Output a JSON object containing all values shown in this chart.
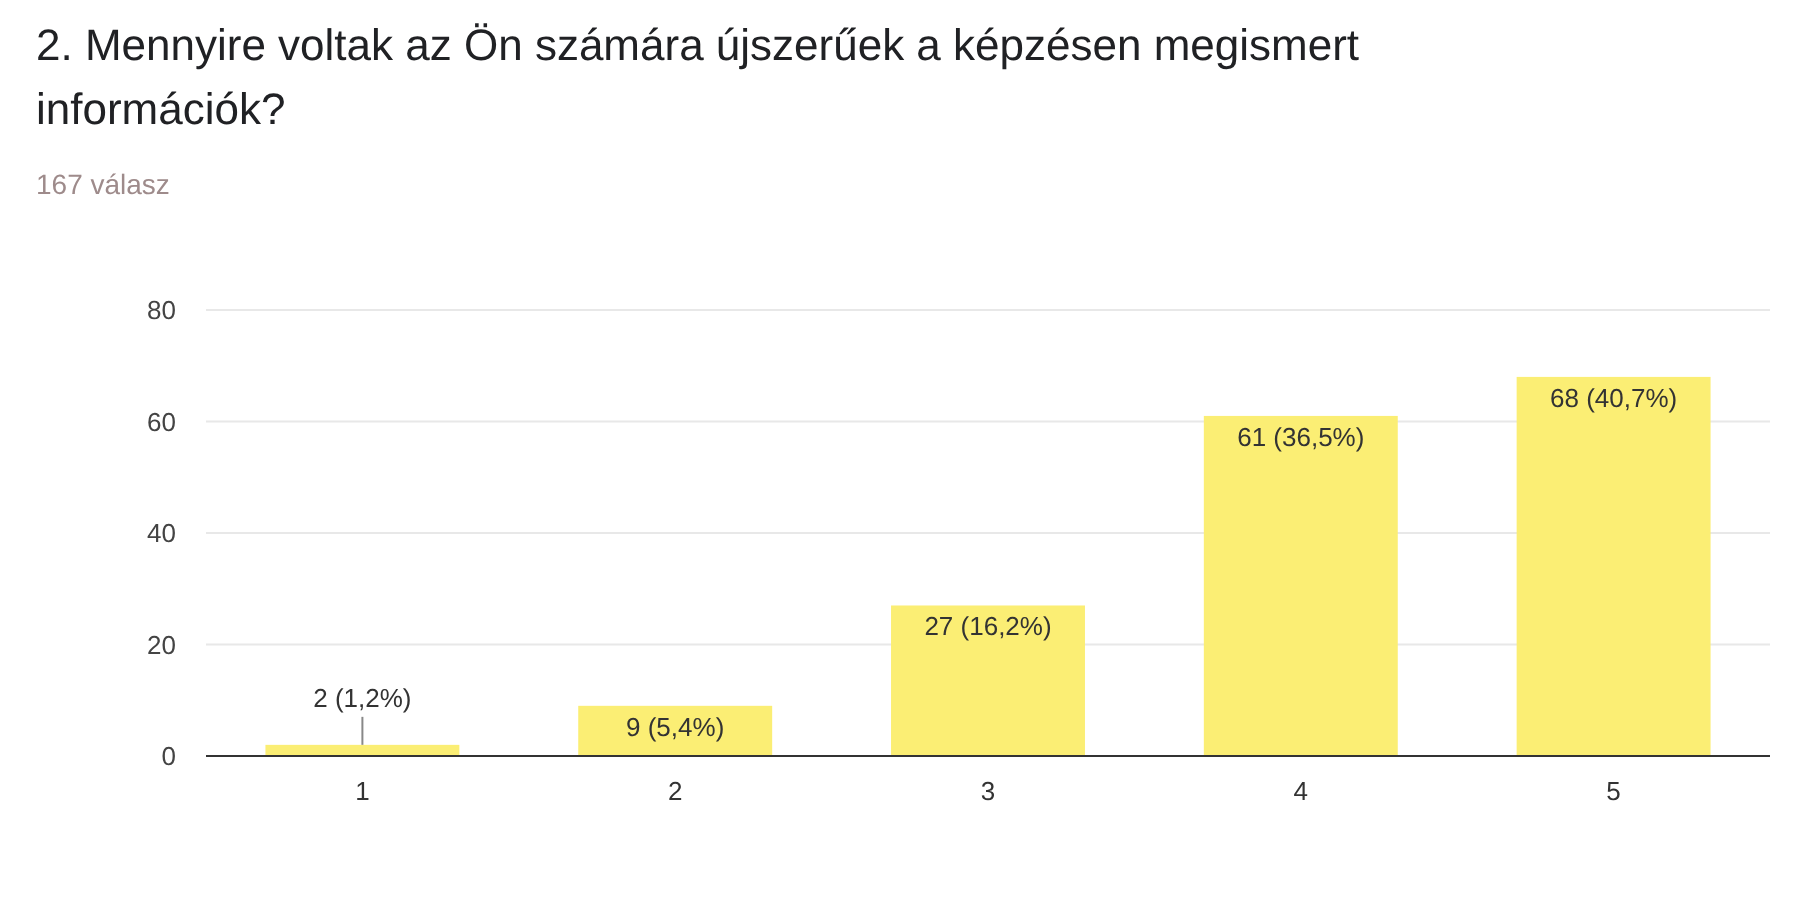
{
  "chart_data": {
    "type": "bar",
    "title": "2. Mennyire voltak az Ön számára újszerűek a képzésen megismert információk?",
    "subtitle": "167 válasz",
    "categories": [
      "1",
      "2",
      "3",
      "4",
      "5"
    ],
    "values": [
      2,
      9,
      27,
      61,
      68
    ],
    "value_labels": [
      "2 (1,2%)",
      "9 (5,4%)",
      "27 (16,2%)",
      "61 (36,5%)",
      "68 (40,7%)"
    ],
    "color": "#fbee74",
    "ylim": [
      0,
      80
    ],
    "yticks": [
      0,
      20,
      40,
      60,
      80
    ],
    "grid": "y"
  }
}
